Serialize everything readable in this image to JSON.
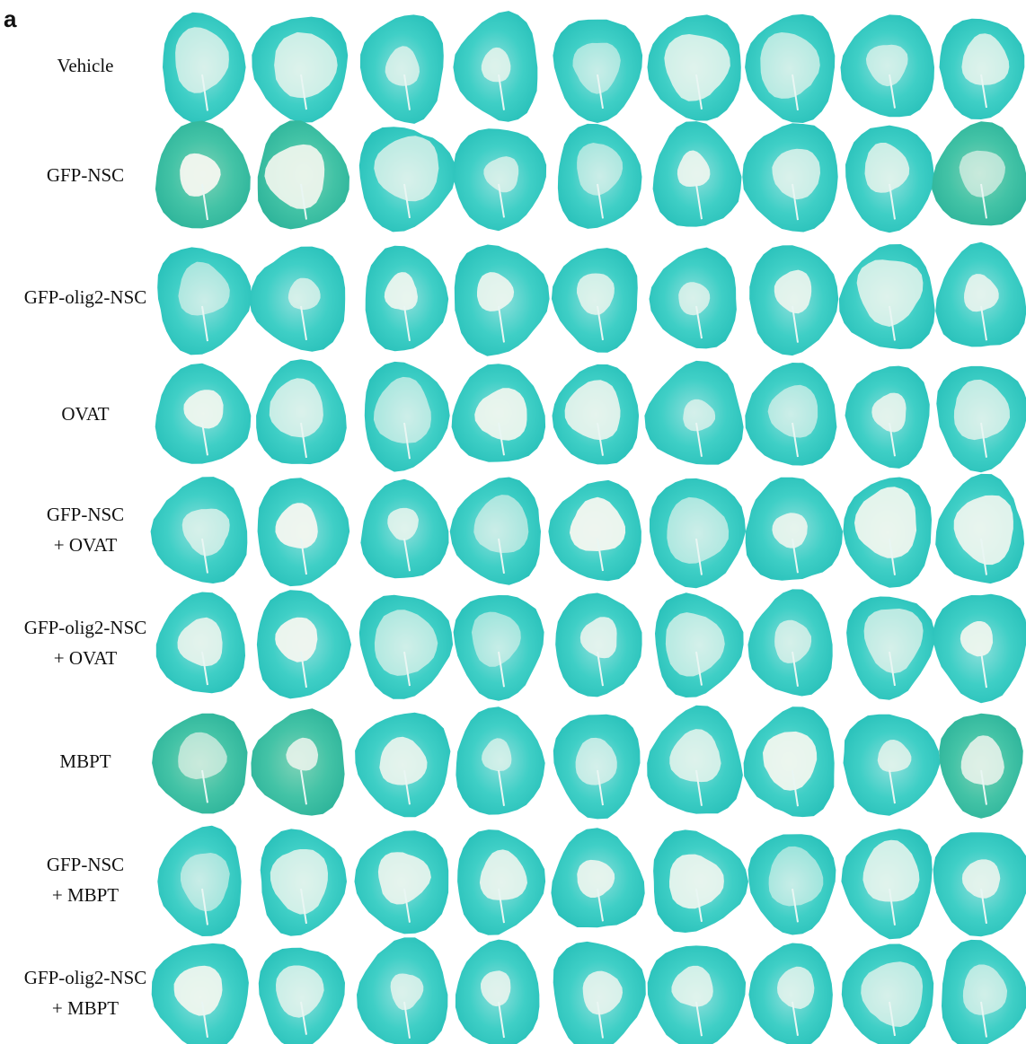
{
  "panel_label": "a",
  "rows": [
    {
      "lines": [
        "Vehicle"
      ]
    },
    {
      "lines": [
        "GFP-NSC"
      ]
    },
    {
      "lines": [
        "GFP-olig2-NSC"
      ]
    },
    {
      "lines": [
        "OVAT"
      ]
    },
    {
      "lines": [
        "GFP-NSC",
        "+ OVAT"
      ]
    },
    {
      "lines": [
        "GFP-olig2-NSC",
        "+ OVAT"
      ]
    },
    {
      "lines": [
        "MBPT"
      ]
    },
    {
      "lines": [
        "GFP-NSC",
        "+ MBPT"
      ]
    },
    {
      "lines": [
        "GFP-olig2-NSC",
        "+ MBPT"
      ]
    }
  ]
}
